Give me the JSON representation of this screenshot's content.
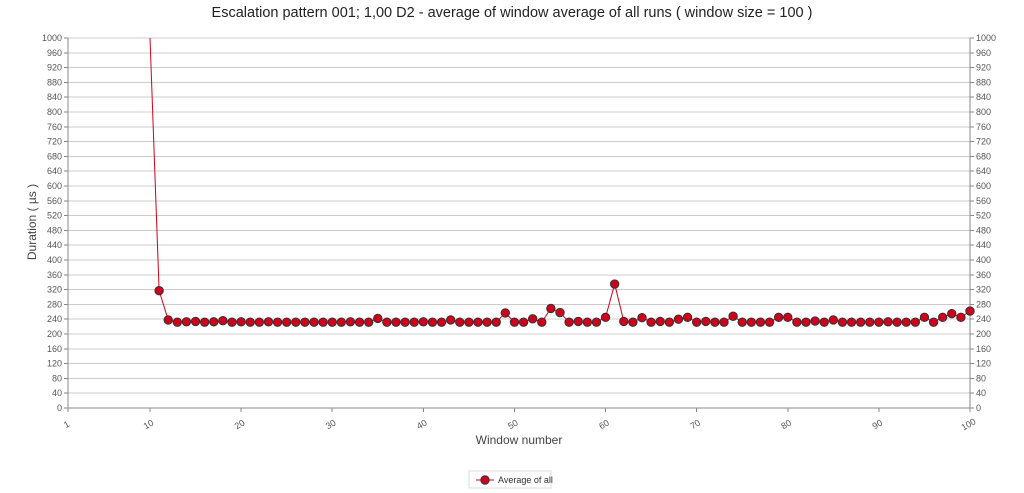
{
  "chart_data": {
    "type": "line",
    "title": "Escalation pattern 001; 1,00 D2 - average of window average of all runs ( window size = 100 )",
    "xlabel": "Window number",
    "ylabel": "Duration ( µs )",
    "xlim": [
      1,
      100
    ],
    "ylim": [
      0,
      1000
    ],
    "x_ticks": [
      1,
      10,
      20,
      30,
      40,
      50,
      60,
      70,
      80,
      90,
      100
    ],
    "y_ticks": [
      0,
      40,
      80,
      120,
      160,
      200,
      240,
      280,
      320,
      360,
      400,
      440,
      480,
      520,
      560,
      600,
      640,
      680,
      720,
      760,
      800,
      840,
      880,
      920,
      960,
      1000
    ],
    "grid": true,
    "dual_y_axis": true,
    "legend_position": "bottom",
    "series": [
      {
        "name": "Average of all",
        "color": "#d0021b",
        "marker_edge": "#333333",
        "x": [
          10,
          11,
          12,
          13,
          14,
          15,
          16,
          17,
          18,
          19,
          20,
          21,
          22,
          23,
          24,
          25,
          26,
          27,
          28,
          29,
          30,
          31,
          32,
          33,
          34,
          35,
          36,
          37,
          38,
          39,
          40,
          41,
          42,
          43,
          44,
          45,
          46,
          47,
          48,
          49,
          50,
          51,
          52,
          53,
          54,
          55,
          56,
          57,
          58,
          59,
          60,
          61,
          62,
          63,
          64,
          65,
          66,
          67,
          68,
          69,
          70,
          71,
          72,
          73,
          74,
          75,
          76,
          77,
          78,
          79,
          80,
          81,
          82,
          83,
          84,
          85,
          86,
          87,
          88,
          89,
          90,
          91,
          92,
          93,
          94,
          95,
          96,
          97,
          98,
          99,
          100
        ],
        "values": [
          1000,
          317,
          238,
          232,
          233,
          234,
          232,
          233,
          236,
          232,
          233,
          232,
          232,
          233,
          232,
          232,
          232,
          232,
          232,
          232,
          232,
          232,
          233,
          232,
          232,
          242,
          232,
          232,
          232,
          232,
          233,
          232,
          232,
          238,
          232,
          232,
          232,
          232,
          232,
          257,
          232,
          232,
          241,
          232,
          269,
          258,
          232,
          234,
          232,
          232,
          245,
          335,
          234,
          232,
          244,
          232,
          234,
          232,
          240,
          245,
          232,
          234,
          232,
          232,
          248,
          232,
          232,
          232,
          232,
          245,
          245,
          232,
          232,
          235,
          232,
          238,
          232,
          232,
          232,
          232,
          232,
          233,
          232,
          232,
          232,
          245,
          232,
          245,
          255,
          245,
          262
        ]
      }
    ]
  }
}
